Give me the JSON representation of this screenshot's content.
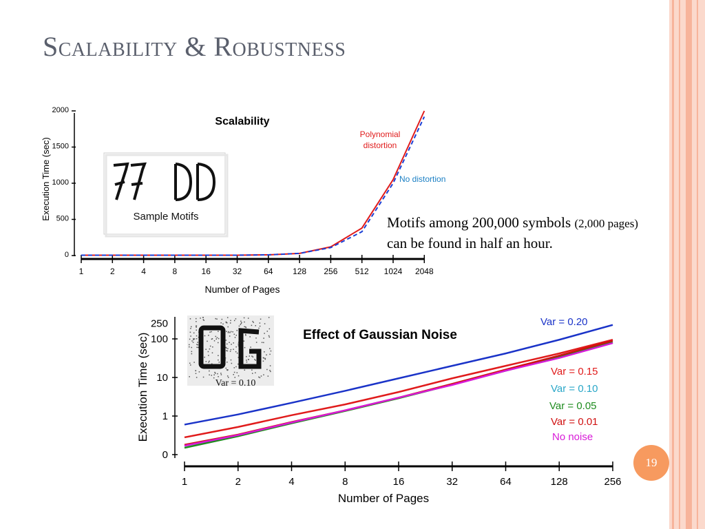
{
  "slide": {
    "title": "Scalability & Robustness",
    "text_line1": "Motifs among 200,000 symbols ",
    "text_line1_small": "(2,000 pages)",
    "text_line2": "can be found in half an hour.",
    "page_number": "19"
  },
  "colors": {
    "band_light": "#fbd9cc",
    "band_mid": "#f7b49b",
    "badge": "#f79a5f",
    "title": "#5a5f6c"
  },
  "chart_data": [
    {
      "type": "line",
      "title": "Scalability",
      "xlabel": "Number of Pages",
      "ylabel": "Execution Time (sec)",
      "categories": [
        "1",
        "2",
        "4",
        "8",
        "16",
        "32",
        "64",
        "128",
        "256",
        "512",
        "1024",
        "2048"
      ],
      "yticks": [
        0,
        500,
        1000,
        1500,
        2000
      ],
      "ylim": [
        0,
        2000
      ],
      "grid": false,
      "series": [
        {
          "name": "Polynomial distortion",
          "color": "#e01b1b",
          "dash": false,
          "values": [
            5,
            5,
            5,
            5,
            5,
            5,
            10,
            30,
            120,
            380,
            1050,
            2000
          ]
        },
        {
          "name": "No distortion",
          "color": "#1a3ed4",
          "dash": true,
          "values": [
            5,
            5,
            5,
            5,
            5,
            5,
            10,
            30,
            110,
            330,
            1000,
            1920
          ]
        }
      ],
      "inset_caption": "Sample Motifs"
    },
    {
      "type": "line",
      "title": "Effect of Gaussian Noise",
      "xlabel": "Number of Pages",
      "ylabel": "Execution Time (sec)",
      "categories": [
        "1",
        "2",
        "4",
        "8",
        "16",
        "32",
        "64",
        "128",
        "256"
      ],
      "ytick_labels": [
        "0",
        "1",
        "10",
        "100",
        "250"
      ],
      "yscale": "log",
      "grid": false,
      "series": [
        {
          "name": "Var = 0.20",
          "color": "#1a33c8",
          "values": [
            0.6,
            1.1,
            2.2,
            4.5,
            9.5,
            20,
            42,
            95,
            230
          ]
        },
        {
          "name": "Var = 0.15",
          "color": "#e01b1b",
          "values": [
            0.28,
            0.52,
            1.05,
            2.0,
            4.2,
            9.5,
            20,
            42,
            95
          ]
        },
        {
          "name": "Var = 0.10",
          "color": "#2aa7c8",
          "values": [
            0.17,
            0.32,
            0.68,
            1.4,
            3.0,
            6.6,
            15,
            33,
            80
          ]
        },
        {
          "name": "Var = 0.05",
          "color": "#1e8c1e",
          "values": [
            0.15,
            0.3,
            0.65,
            1.35,
            2.9,
            6.5,
            15,
            34,
            82
          ]
        },
        {
          "name": "Var = 0.01",
          "color": "#d01010",
          "values": [
            0.18,
            0.33,
            0.7,
            1.4,
            3.0,
            6.8,
            16,
            37,
            90
          ]
        },
        {
          "name": "No noise",
          "color": "#d81ad8",
          "values": [
            0.17,
            0.32,
            0.68,
            1.4,
            3.0,
            6.4,
            15,
            32,
            78
          ]
        }
      ],
      "inset_caption": "Var = 0.10"
    }
  ]
}
